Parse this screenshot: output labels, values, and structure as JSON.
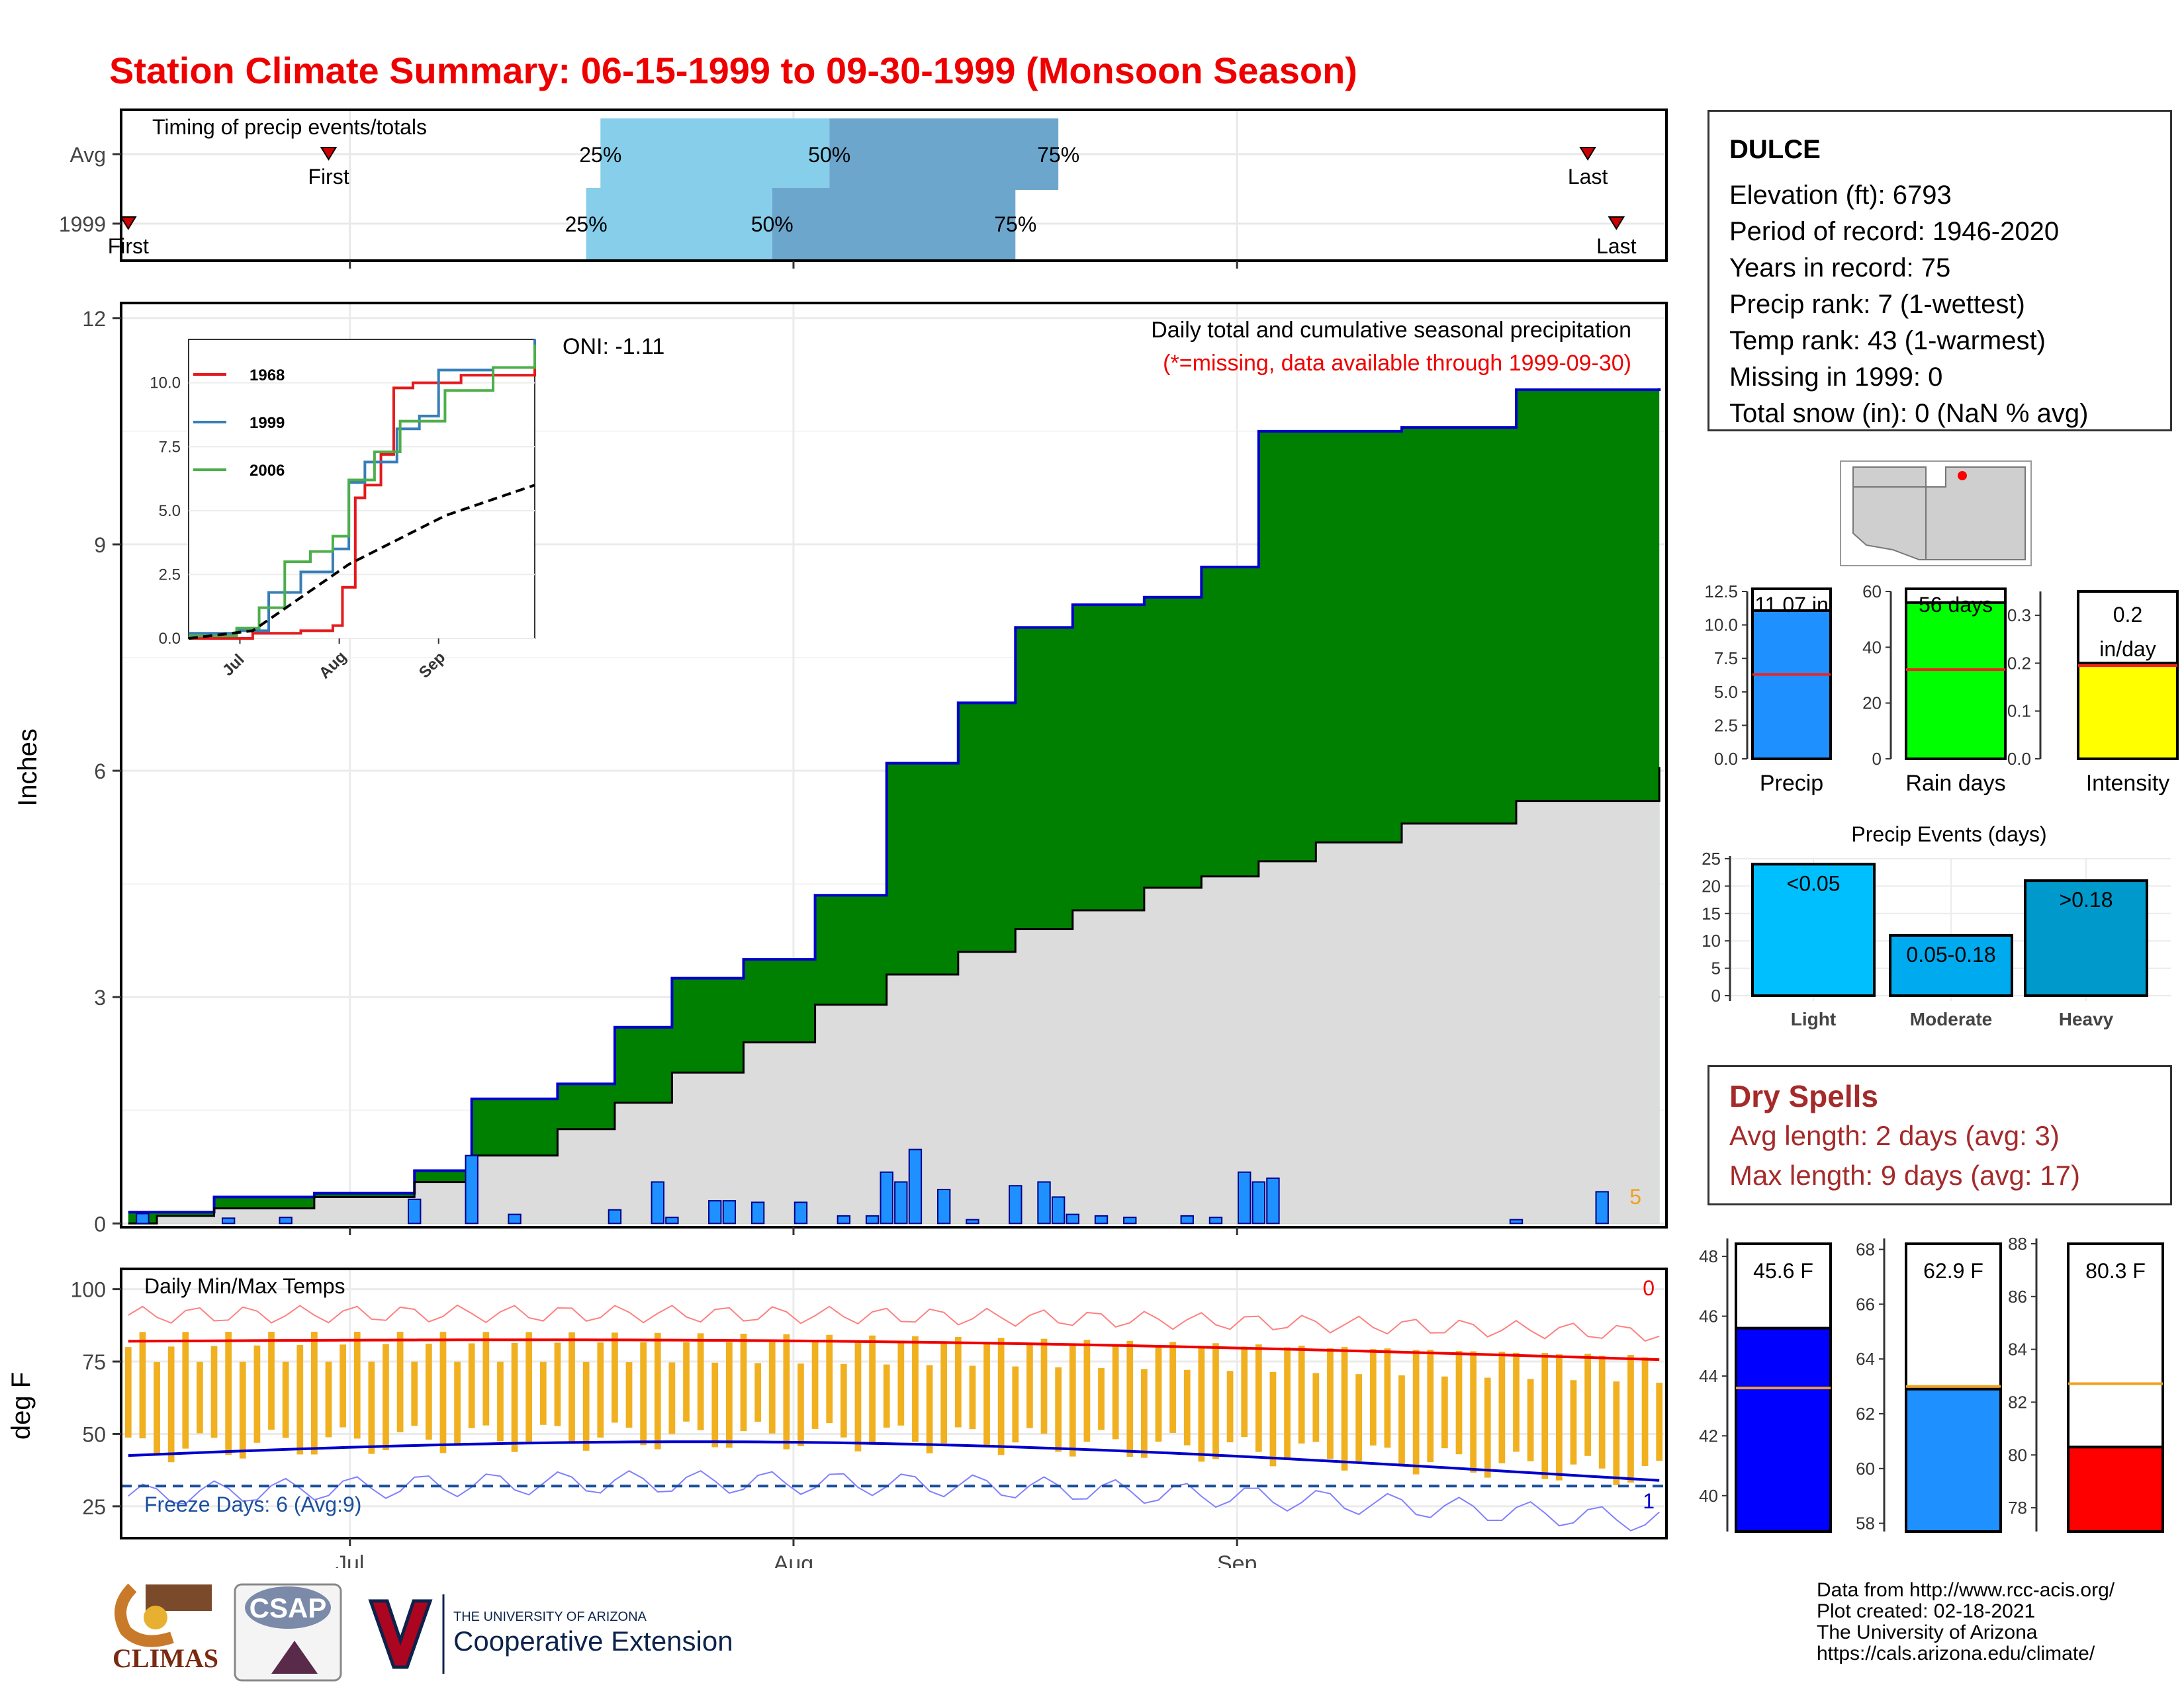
{
  "title": "Station Climate Summary: 06-15-1999 to 09-30-1999 (Monsoon Season)",
  "timing": {
    "heading": "Timing of precip events/totals",
    "rows": [
      {
        "label": "Avg",
        "first_label": "First",
        "last_label": "Last",
        "first": "06-29",
        "p25": "07-18",
        "p50": "08-03",
        "p75": "08-19",
        "last": "09-25"
      },
      {
        "label": "1999",
        "first_label": "First",
        "last_label": "Last",
        "first": "06-15",
        "p25": "07-17",
        "p50": "07-30",
        "p75": "08-16",
        "last": "09-27"
      }
    ],
    "pct_labels": [
      "25%",
      "50%",
      "75%"
    ]
  },
  "main_chart": {
    "ylabel": "Inches",
    "annotation_title": "Daily total and cumulative seasonal precipitation",
    "annotation_missing": "(*=missing, data available through 1999-09-30)",
    "oni": "ONI: -1.11",
    "corner_count": "5",
    "yticks": [
      "0",
      "3",
      "6",
      "9",
      "12"
    ],
    "xticks": [
      "Jul",
      "Aug",
      "Sep"
    ]
  },
  "chart_data": {
    "type": "area",
    "title": "Daily total and cumulative seasonal precipitation",
    "ylabel": "Inches",
    "ylim": [
      0,
      12
    ],
    "x": [
      "06-15",
      "06-17",
      "06-21",
      "06-28",
      "07-05",
      "07-09",
      "07-15",
      "07-19",
      "07-23",
      "07-28",
      "08-02",
      "08-07",
      "08-12",
      "08-16",
      "08-20",
      "08-25",
      "08-29",
      "09-02",
      "09-06",
      "09-12",
      "09-20",
      "09-30"
    ],
    "series": [
      {
        "name": "1999",
        "values": [
          0.15,
          0.15,
          0.35,
          0.4,
          0.7,
          1.65,
          1.85,
          2.6,
          3.25,
          3.5,
          4.35,
          6.1,
          6.9,
          7.9,
          8.2,
          8.3,
          8.7,
          10.5,
          10.5,
          10.55,
          11.05,
          11.07
        ]
      },
      {
        "name": "Avg",
        "values": [
          0.0,
          0.1,
          0.2,
          0.35,
          0.55,
          0.9,
          1.25,
          1.6,
          2.0,
          2.4,
          2.9,
          3.3,
          3.6,
          3.9,
          4.15,
          4.45,
          4.6,
          4.8,
          5.05,
          5.3,
          5.6,
          6.05
        ]
      }
    ],
    "daily_precip": {
      "dates": [
        "06-16",
        "06-22",
        "06-26",
        "07-05",
        "07-09",
        "07-12",
        "07-19",
        "07-22",
        "07-23",
        "07-26",
        "07-27",
        "07-29",
        "08-01",
        "08-04",
        "08-06",
        "08-07",
        "08-08",
        "08-09",
        "08-11",
        "08-13",
        "08-16",
        "08-18",
        "08-19",
        "08-20",
        "08-22",
        "08-24",
        "08-28",
        "08-30",
        "09-01",
        "09-02",
        "09-03",
        "09-20",
        "09-26"
      ],
      "values": [
        0.13,
        0.07,
        0.08,
        0.32,
        0.9,
        0.12,
        0.18,
        0.55,
        0.08,
        0.3,
        0.3,
        0.28,
        0.28,
        0.1,
        0.1,
        0.68,
        0.55,
        0.98,
        0.45,
        0.05,
        0.5,
        0.55,
        0.35,
        0.12,
        0.1,
        0.08,
        0.1,
        0.08,
        0.68,
        0.55,
        0.6,
        0.05,
        0.42
      ]
    }
  },
  "inset": {
    "yticks": [
      "0.0",
      "2.5",
      "5.0",
      "7.5",
      "10.0"
    ],
    "xticks": [
      "Jul",
      "Aug",
      "Sep"
    ],
    "legend": [
      {
        "year": "1968",
        "color": "#e41a1c"
      },
      {
        "year": "1999",
        "color": "#377eb8"
      },
      {
        "year": "2006",
        "color": "#4daf4a"
      }
    ]
  },
  "temp_chart": {
    "ylabel": "deg F",
    "title": "Daily Min/Max Temps",
    "freeze": "Freeze Days: 6 (Avg:9)",
    "corner_max_count": "0",
    "corner_min_count": "1",
    "yticks": [
      "25",
      "50",
      "75",
      "100"
    ],
    "xticks": [
      "Jul",
      "Aug",
      "Sep"
    ]
  },
  "station": {
    "name": "DULCE",
    "lines": [
      "Elevation (ft): 6793",
      "Period of record: 1946-2020",
      "Years in record: 75",
      "Precip rank: 7 (1-wettest)",
      "Temp rank: 43 (1-warmest)",
      "Missing in 1999: 0",
      "Total snow (in): 0 (NaN % avg)"
    ]
  },
  "summary_bars": [
    {
      "label": "Precip",
      "value": 11.07,
      "text": "11.07 in",
      "avg": 6.3,
      "ymax": 12.5,
      "ticks": [
        "0.0",
        "2.5",
        "5.0",
        "7.5",
        "10.0",
        "12.5"
      ],
      "color": "#1e90ff"
    },
    {
      "label": "Rain days",
      "value": 56,
      "text": "56 days",
      "avg": 32,
      "ymax": 60,
      "ticks": [
        "0",
        "20",
        "40",
        "60"
      ],
      "color": "#00ff00"
    },
    {
      "label": "Intensity",
      "value": 0.2,
      "text": "0.2 in/day",
      "avg": 0.195,
      "ymax": 0.35,
      "ticks": [
        "0.0",
        "0.1",
        "0.2",
        "0.3"
      ],
      "color": "#ffff00"
    }
  ],
  "events": {
    "title": "Precip Events (days)",
    "ticks": [
      "0",
      "5",
      "10",
      "15",
      "20",
      "25"
    ],
    "bars": [
      {
        "category": "Light",
        "label": "<0.05",
        "value": 24,
        "color": "#00bfff"
      },
      {
        "category": "Moderate",
        "label": "0.05-0.18",
        "value": 11,
        "color": "#00aaee"
      },
      {
        "category": "Heavy",
        "label": ">0.18",
        "value": 21,
        "color": "#0099cc"
      }
    ]
  },
  "dry_spells": {
    "title": "Dry Spells",
    "avg": "Avg length: 2 days (avg: 3)",
    "max": "Max length: 9 days (avg: 17)"
  },
  "temp_bars": [
    {
      "label": "T-min",
      "value": 45.6,
      "text": "45.6 F",
      "avg": 43.6,
      "ymin": 38.8,
      "ymax": 48.6,
      "ticks": [
        40,
        42,
        44,
        46,
        48
      ],
      "color": "#0000ff"
    },
    {
      "label": "T-mean",
      "value": 62.9,
      "text": "62.9 F",
      "avg": 63.0,
      "ymin": 57.7,
      "ymax": 68.4,
      "ticks": [
        58,
        60,
        62,
        64,
        66,
        68
      ],
      "color": "#1e90ff"
    },
    {
      "label": "T-max",
      "value": 80.3,
      "text": "80.3 F",
      "avg": 82.7,
      "ymin": 77.1,
      "ymax": 88.2,
      "ticks": [
        78,
        80,
        82,
        84,
        86,
        88
      ],
      "color": "#ff0000"
    }
  ],
  "credits": [
    "Data from http://www.rcc-acis.org/",
    "Plot created: 02-18-2021",
    "The University of Arizona",
    "https://cals.arizona.edu/climate/"
  ],
  "logos": {
    "climas": "CLIMAS",
    "csap": "CSAP",
    "ua_small": "THE UNIVERSITY OF ARIZONA",
    "ua_big": "Cooperative Extension"
  }
}
